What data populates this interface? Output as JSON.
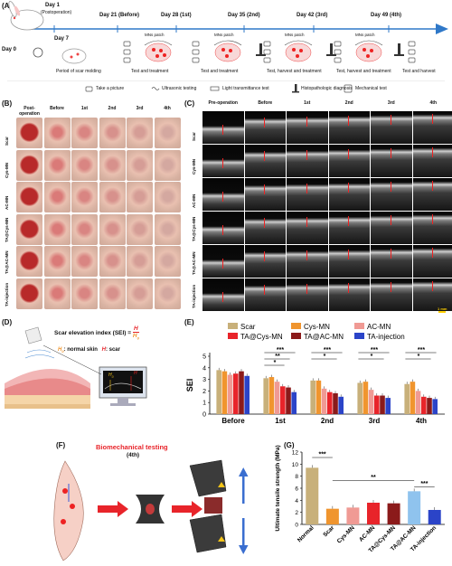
{
  "panels": {
    "A": "(A)",
    "B": "(B)",
    "C": "(C)",
    "D": "(D)",
    "E": "(E)",
    "F": "(F)",
    "G": "(G)"
  },
  "timeline": {
    "day1": "Day 1",
    "day1_sub": "(Postoperation)",
    "day0": "Day 0",
    "day7": "Day 7",
    "day21": "Day 21 (Before)",
    "day28": "Day 28 (1st)",
    "day35": "Day 35 (2nd)",
    "day42": "Day 42 (3rd)",
    "day49": "Day 49 (4th)",
    "stage_scar": "Period of scar molding",
    "stage1": "Test and treatment",
    "stage2": "Test and treatment",
    "stage3": "Test, harvest and treatment",
    "stage4": "Test, harvest and treatment",
    "stage5": "Test and harvest",
    "patch": "MNs patch",
    "legend": {
      "picture": "Take a picture",
      "ultra": "Ultrasonic testing",
      "light": "Light transmittance test",
      "histo": "Histopathologic diagnosis",
      "mech": "Mechanical test"
    }
  },
  "panelB": {
    "cols": [
      "Post-operation",
      "Before",
      "1st",
      "2nd",
      "3rd",
      "4th"
    ],
    "rows": [
      "Scar",
      "Cys-MN",
      "AC-MN",
      "TA@Cys-MN",
      "TA@AC-MN",
      "TA-injection"
    ]
  },
  "panelC": {
    "cols": [
      "Pre-operation",
      "Before",
      "1st",
      "2nd",
      "3rd",
      "4th"
    ],
    "rows": [
      "Scar",
      "Cys-MN",
      "AC-MN",
      "TA@Cys-MN",
      "TA@AC-MN",
      "TA-injection"
    ],
    "scalebar": "1 mm"
  },
  "panelD": {
    "formula_text": "Scar elevation index (SEI) = ",
    "formula_num": "H",
    "formula_den": "H",
    "formula_den_sub": "0",
    "h0": "H",
    "h0_sub": "0",
    "h0_desc": ": normal skin",
    "h": "H",
    "h_desc": ": scar",
    "screen_h0": "H",
    "screen_h0_sub": "0",
    "screen_h": "H"
  },
  "panelF": {
    "title": "Biomechanical testing",
    "subtitle": "(4th)"
  },
  "colors": {
    "scar": "#c8b07a",
    "cys": "#f0952e",
    "ac": "#f09a94",
    "tacys": "#e8242a",
    "taac": "#8b1a1a",
    "tainj": "#2b44c8",
    "normal": "#c8b07a",
    "red_title": "#e8242a"
  },
  "chart_data": [
    {
      "type": "bar",
      "panel": "E",
      "ylabel": "SEI",
      "ylim": [
        0,
        5
      ],
      "yticks": [
        0,
        1,
        2,
        3,
        4,
        5
      ],
      "categories": [
        "Before",
        "1st",
        "2nd",
        "3rd",
        "4th"
      ],
      "series": [
        {
          "name": "Scar",
          "color": "#c8b07a",
          "values": [
            3.8,
            3.1,
            2.9,
            2.7,
            2.6
          ]
        },
        {
          "name": "Cys-MN",
          "color": "#f0952e",
          "values": [
            3.7,
            3.2,
            2.9,
            2.8,
            2.8
          ]
        },
        {
          "name": "AC-MN",
          "color": "#f09a94",
          "values": [
            3.4,
            2.8,
            2.2,
            2.1,
            2.0
          ]
        },
        {
          "name": "TA@Cys-MN",
          "color": "#e8242a",
          "values": [
            3.5,
            2.4,
            1.9,
            1.6,
            1.5
          ]
        },
        {
          "name": "TA@AC-MN",
          "color": "#8b1a1a",
          "values": [
            3.7,
            2.3,
            1.8,
            1.6,
            1.4
          ]
        },
        {
          "name": "TA-injection",
          "color": "#2b44c8",
          "values": [
            3.3,
            1.9,
            1.5,
            1.4,
            1.3
          ]
        }
      ],
      "sig": [
        {
          "cat": 1,
          "labels": [
            "***",
            "**",
            "*"
          ]
        },
        {
          "cat": 2,
          "labels": [
            "***",
            "*"
          ]
        },
        {
          "cat": 3,
          "labels": [
            "***",
            "*"
          ]
        },
        {
          "cat": 4,
          "labels": [
            "***",
            "*"
          ]
        }
      ]
    },
    {
      "type": "bar",
      "panel": "G",
      "ylabel": "Ultimate tensile strength (MPa)",
      "ylim": [
        0,
        12
      ],
      "yticks": [
        0,
        2,
        4,
        6,
        8,
        10,
        12
      ],
      "categories": [
        "Normal",
        "Scar",
        "Cys-MN",
        "AC-MN",
        "TA@Cys-MN",
        "TA@AC-MN",
        "TA-injection"
      ],
      "values": [
        9.4,
        2.6,
        2.8,
        3.6,
        3.5,
        5.5,
        2.4
      ],
      "colors": [
        "#c8b07a",
        "#f0952e",
        "#f09a94",
        "#e8242a",
        "#8b1a1a",
        "#8fc3ee",
        "#2b44c8"
      ],
      "sig": [
        {
          "from": 0,
          "to": 1,
          "label": "***"
        },
        {
          "from": 1,
          "to": 5,
          "label": "**"
        },
        {
          "from": 5,
          "to": 6,
          "label": "***"
        }
      ]
    }
  ]
}
